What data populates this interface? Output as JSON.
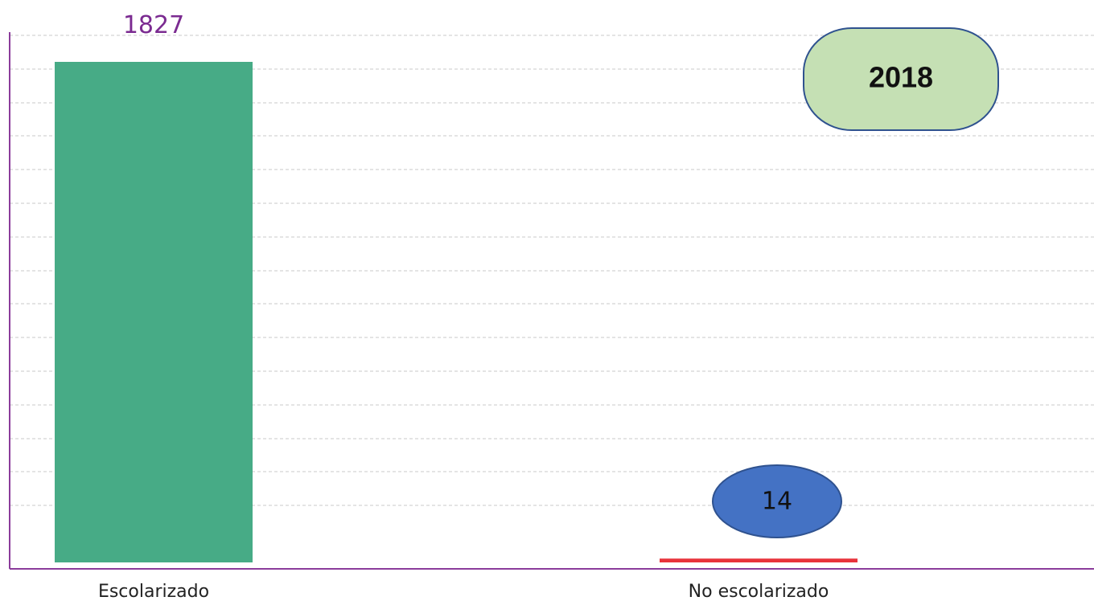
{
  "chart_data": {
    "type": "bar",
    "title": "",
    "xlabel": "",
    "ylabel": "",
    "categories": [
      "Escolarizado",
      "No escolarizado"
    ],
    "values": [
      1827,
      14
    ],
    "value_labels": [
      "1827",
      "14"
    ],
    "ylim": [
      0,
      1827
    ],
    "grid": true,
    "bar_colors": [
      "#47ab86",
      "#e8333b"
    ],
    "annotation": "2018"
  },
  "colors": {
    "axis": "#8b3c9b",
    "value_label_first": "#7b2b91",
    "bubble_fill": "#4472c4",
    "bubble_stroke": "#2f528f",
    "year_fill": "#c5e0b4",
    "year_stroke": "#2f528f"
  }
}
